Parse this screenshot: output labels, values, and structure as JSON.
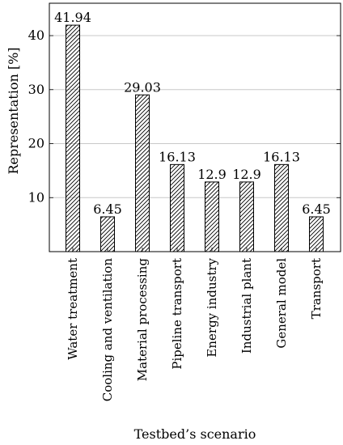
{
  "chart_data": {
    "type": "bar",
    "categories": [
      "Water treatment",
      "Cooling and ventilation",
      "Material processing",
      "Pipeline transport",
      "Energy industry",
      "Industrial plant",
      "General model",
      "Transport"
    ],
    "values": [
      41.94,
      6.45,
      29.03,
      16.13,
      12.9,
      12.9,
      16.13,
      6.45
    ],
    "value_labels": [
      "41.94",
      "6.45",
      "29.03",
      "16.13",
      "12.9",
      "12.9",
      "16.13",
      "6.45"
    ],
    "xlabel": "Testbed’s scenario",
    "ylabel": "Representation [%]",
    "ylim": [
      0,
      46
    ],
    "yticks": [
      10,
      20,
      30,
      40
    ],
    "grid": "horizontal",
    "bar_fill": "diagonal-hatch",
    "colors": {
      "bar_stroke": "#000000",
      "grid": "#c8c8c8",
      "axis": "#000000"
    }
  }
}
